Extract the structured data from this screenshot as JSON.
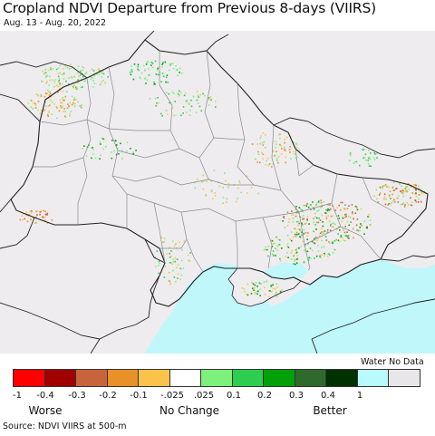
{
  "title": "Cropland NDVI Departure from Previous 8-days (VIIRS)",
  "date_range": "Aug. 13 - Aug. 20, 2022",
  "source": "Source: NDVI VIIRS at 500-m",
  "map": {
    "colors": {
      "land": "#eeecef",
      "sea": "#bff7fb",
      "border": "#222222",
      "admin": "#8a8a8a"
    },
    "sea_label": ""
  },
  "legend": {
    "swatches": [
      {
        "color": "#ff0000"
      },
      {
        "color": "#a00000"
      },
      {
        "color": "#c8643c"
      },
      {
        "color": "#e89128"
      },
      {
        "color": "#fcc34c"
      },
      {
        "color": "#ffffff"
      },
      {
        "color": "#7ef07c"
      },
      {
        "color": "#2fcd4f"
      },
      {
        "color": "#04a00a"
      },
      {
        "color": "#2d6a2b"
      },
      {
        "color": "#003200"
      },
      {
        "color": "#b8fafd"
      },
      {
        "color": "#e8e6e9"
      }
    ],
    "ticks": [
      "-1",
      "-0.4",
      "-0.3",
      "-0.2",
      "-0.1",
      "-.025",
      ".025",
      "0.1",
      "0.2",
      "0.3",
      "0.4",
      "1"
    ],
    "captions": {
      "left": "Worse",
      "middle": "No Change",
      "right": "Better"
    },
    "water_no_data": "Water No Data"
  }
}
